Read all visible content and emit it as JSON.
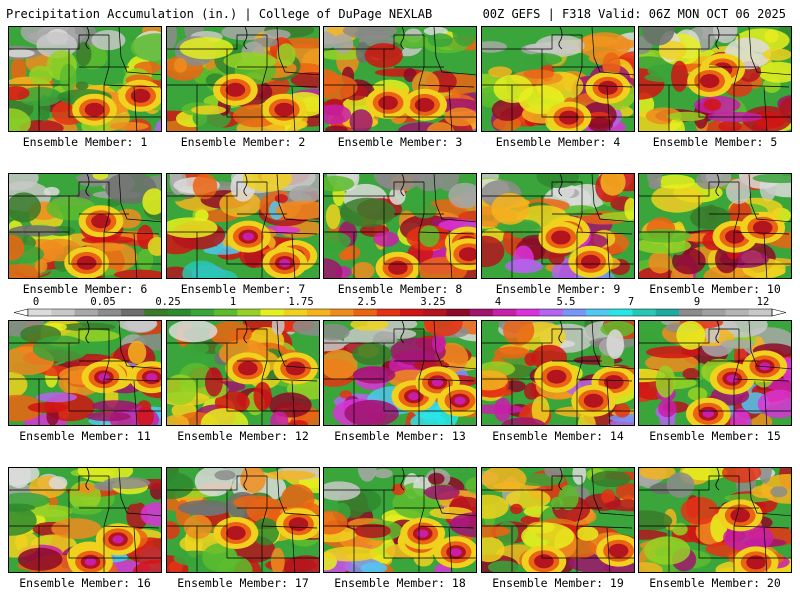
{
  "header": {
    "left": "Precipitation Accumulation (in.) | College of DuPage NEXLAB",
    "right": "00Z GEFS | F318 Valid: 06Z MON OCT 06 2025"
  },
  "label_prefix": "Ensemble Member: ",
  "members": [
    {
      "id": 1,
      "label": "Ensemble Member: 1",
      "seed": 11,
      "intensity": 0.55
    },
    {
      "id": 2,
      "label": "Ensemble Member: 2",
      "seed": 23,
      "intensity": 0.55
    },
    {
      "id": 3,
      "label": "Ensemble Member: 3",
      "seed": 37,
      "intensity": 0.65
    },
    {
      "id": 4,
      "label": "Ensemble Member: 4",
      "seed": 41,
      "intensity": 0.62
    },
    {
      "id": 5,
      "label": "Ensemble Member: 5",
      "seed": 53,
      "intensity": 0.6
    },
    {
      "id": 6,
      "label": "Ensemble Member: 6",
      "seed": 67,
      "intensity": 0.45
    },
    {
      "id": 7,
      "label": "Ensemble Member: 7",
      "seed": 71,
      "intensity": 0.95
    },
    {
      "id": 8,
      "label": "Ensemble Member: 8",
      "seed": 83,
      "intensity": 0.7
    },
    {
      "id": 9,
      "label": "Ensemble Member: 9",
      "seed": 97,
      "intensity": 0.68
    },
    {
      "id": 10,
      "label": "Ensemble Member: 10",
      "seed": 101,
      "intensity": 0.6
    },
    {
      "id": 11,
      "label": "Ensemble Member: 11",
      "seed": 113,
      "intensity": 0.78
    },
    {
      "id": 12,
      "label": "Ensemble Member: 12",
      "seed": 127,
      "intensity": 0.6
    },
    {
      "id": 13,
      "label": "Ensemble Member: 13",
      "seed": 131,
      "intensity": 0.8
    },
    {
      "id": 14,
      "label": "Ensemble Member: 14",
      "seed": 149,
      "intensity": 0.68
    },
    {
      "id": 15,
      "label": "Ensemble Member: 15",
      "seed": 157,
      "intensity": 0.75
    },
    {
      "id": 16,
      "label": "Ensemble Member: 16",
      "seed": 163,
      "intensity": 0.78
    },
    {
      "id": 17,
      "label": "Ensemble Member: 17",
      "seed": 173,
      "intensity": 0.5
    },
    {
      "id": 18,
      "label": "Ensemble Member: 18",
      "seed": 181,
      "intensity": 0.75
    },
    {
      "id": 19,
      "label": "Ensemble Member: 19",
      "seed": 191,
      "intensity": 0.6
    },
    {
      "id": 20,
      "label": "Ensemble Member: 20",
      "seed": 199,
      "intensity": 0.6
    }
  ],
  "colorbar": {
    "unit": "in.",
    "tick_labels": [
      "0",
      "0.05",
      "0.25",
      "1",
      "1.75",
      "2.5",
      "3.25",
      "4",
      "5.5",
      "7",
      "9",
      "12"
    ],
    "colors": [
      "#dcdcdc",
      "#c8c8c8",
      "#a8a8a8",
      "#8c8c8c",
      "#6e6e6e",
      "#3a7a2a",
      "#2f8a2f",
      "#3aa53a",
      "#5cbc2e",
      "#96d226",
      "#e6f01e",
      "#f0d21e",
      "#f5b41e",
      "#f08c1e",
      "#eb6414",
      "#e63214",
      "#d21414",
      "#b4141e",
      "#8c0a28",
      "#a0146e",
      "#c81eaa",
      "#dc32dc",
      "#b464f0",
      "#7896f5",
      "#50c8f0",
      "#28e6e6",
      "#28c8b4",
      "#1eaaa0",
      "#8c8c8c",
      "#a0a0a0",
      "#b4b4b4",
      "#c8c8c8"
    ]
  }
}
